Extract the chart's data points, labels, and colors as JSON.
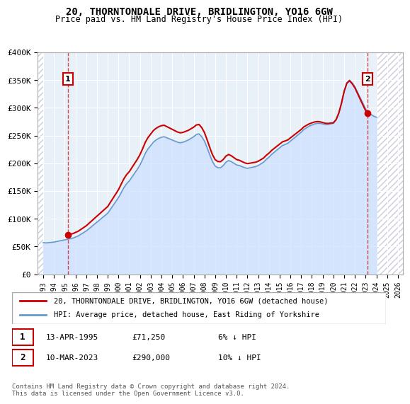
{
  "title": "20, THORNTONDALE DRIVE, BRIDLINGTON, YO16 6GW",
  "subtitle": "Price paid vs. HM Land Registry's House Price Index (HPI)",
  "ylabel": "",
  "xlabel": "",
  "ylim": [
    0,
    400000
  ],
  "yticks": [
    0,
    50000,
    100000,
    150000,
    200000,
    250000,
    300000,
    350000,
    400000
  ],
  "ytick_labels": [
    "£0",
    "£50K",
    "£100K",
    "£150K",
    "£200K",
    "£250K",
    "£300K",
    "£350K",
    "£400K"
  ],
  "hpi_color": "#6699cc",
  "price_color": "#cc0000",
  "hpi_fill_color": "#cce0ff",
  "bg_hatch_color": "#ddddee",
  "sale1_date": 1995.29,
  "sale1_price": 71250,
  "sale2_date": 2023.19,
  "sale2_price": 290000,
  "xlim_left": 1992.5,
  "xlim_right": 2026.5,
  "xtick_years": [
    1993,
    1994,
    1995,
    1996,
    1997,
    1998,
    1999,
    2000,
    2001,
    2002,
    2003,
    2004,
    2005,
    2006,
    2007,
    2008,
    2009,
    2010,
    2011,
    2012,
    2013,
    2014,
    2015,
    2016,
    2017,
    2018,
    2019,
    2020,
    2021,
    2022,
    2023,
    2024,
    2025,
    2026
  ],
  "legend_label1": "20, THORNTONDALE DRIVE, BRIDLINGTON, YO16 6GW (detached house)",
  "legend_label2": "HPI: Average price, detached house, East Riding of Yorkshire",
  "note1_num": "1",
  "note1_date": "13-APR-1995",
  "note1_price": "£71,250",
  "note1_hpi": "6% ↓ HPI",
  "note2_num": "2",
  "note2_date": "10-MAR-2023",
  "note2_price": "£290,000",
  "note2_hpi": "10% ↓ HPI",
  "copyright": "Contains HM Land Registry data © Crown copyright and database right 2024.\nThis data is licensed under the Open Government Licence v3.0.",
  "hpi_data_x": [
    1993.0,
    1993.25,
    1993.5,
    1993.75,
    1994.0,
    1994.25,
    1994.5,
    1994.75,
    1995.0,
    1995.25,
    1995.5,
    1995.75,
    1996.0,
    1996.25,
    1996.5,
    1996.75,
    1997.0,
    1997.25,
    1997.5,
    1997.75,
    1998.0,
    1998.25,
    1998.5,
    1998.75,
    1999.0,
    1999.25,
    1999.5,
    1999.75,
    2000.0,
    2000.25,
    2000.5,
    2000.75,
    2001.0,
    2001.25,
    2001.5,
    2001.75,
    2002.0,
    2002.25,
    2002.5,
    2002.75,
    2003.0,
    2003.25,
    2003.5,
    2003.75,
    2004.0,
    2004.25,
    2004.5,
    2004.75,
    2005.0,
    2005.25,
    2005.5,
    2005.75,
    2006.0,
    2006.25,
    2006.5,
    2006.75,
    2007.0,
    2007.25,
    2007.5,
    2007.75,
    2008.0,
    2008.25,
    2008.5,
    2008.75,
    2009.0,
    2009.25,
    2009.5,
    2009.75,
    2010.0,
    2010.25,
    2010.5,
    2010.75,
    2011.0,
    2011.25,
    2011.5,
    2011.75,
    2012.0,
    2012.25,
    2012.5,
    2012.75,
    2013.0,
    2013.25,
    2013.5,
    2013.75,
    2014.0,
    2014.25,
    2014.5,
    2014.75,
    2015.0,
    2015.25,
    2015.5,
    2015.75,
    2016.0,
    2016.25,
    2016.5,
    2016.75,
    2017.0,
    2017.25,
    2017.5,
    2017.75,
    2018.0,
    2018.25,
    2018.5,
    2018.75,
    2019.0,
    2019.25,
    2019.5,
    2019.75,
    2020.0,
    2020.25,
    2020.5,
    2020.75,
    2021.0,
    2021.25,
    2021.5,
    2021.75,
    2022.0,
    2022.25,
    2022.5,
    2022.75,
    2023.0,
    2023.25,
    2023.5,
    2023.75,
    2024.0
  ],
  "hpi_data_y": [
    57000,
    56500,
    57000,
    57500,
    58000,
    59000,
    60000,
    61000,
    62000,
    63000,
    64000,
    65000,
    67000,
    69000,
    72000,
    75000,
    78000,
    82000,
    86000,
    90000,
    94000,
    98000,
    102000,
    106000,
    110000,
    117000,
    124000,
    131000,
    138000,
    147000,
    156000,
    163000,
    168000,
    175000,
    182000,
    189000,
    197000,
    207000,
    218000,
    226000,
    232000,
    238000,
    242000,
    245000,
    247000,
    248000,
    246000,
    244000,
    242000,
    240000,
    238000,
    237000,
    238000,
    240000,
    242000,
    245000,
    248000,
    252000,
    253000,
    248000,
    240000,
    228000,
    215000,
    203000,
    195000,
    192000,
    192000,
    196000,
    202000,
    205000,
    203000,
    200000,
    197000,
    196000,
    194000,
    192000,
    191000,
    192000,
    193000,
    194000,
    196000,
    199000,
    202000,
    207000,
    211000,
    216000,
    220000,
    224000,
    228000,
    232000,
    234000,
    236000,
    240000,
    244000,
    248000,
    252000,
    256000,
    261000,
    264000,
    267000,
    269000,
    271000,
    272000,
    272000,
    271000,
    270000,
    270000,
    271000,
    272000,
    278000,
    290000,
    308000,
    330000,
    345000,
    350000,
    345000,
    338000,
    328000,
    318000,
    308000,
    298000,
    292000,
    288000,
    285000,
    283000
  ]
}
